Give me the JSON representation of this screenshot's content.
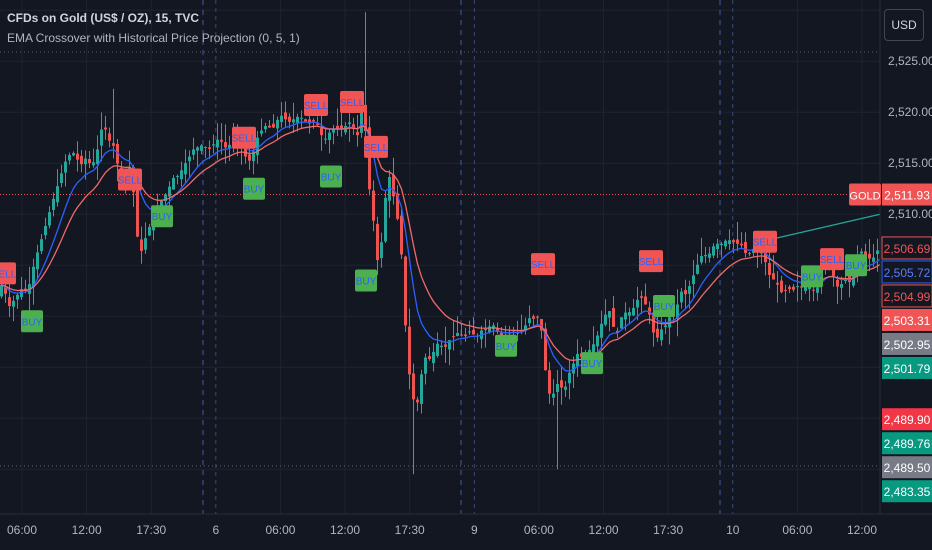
{
  "header": {
    "symbol_title": "CFDs on Gold (US$ / OZ), 15, TVC",
    "indicator_title": "EMA Crossover with Historical Price Projection (0, 5, 1)"
  },
  "currency_button": "USD",
  "chart_data": {
    "type": "candlestick",
    "title": "CFDs on Gold (US$ / OZ), 15, TVC",
    "indicator": "EMA Crossover with Historical Price Projection (0, 5, 1)",
    "y_axis": {
      "ticks": [
        "2,510.00",
        "2,515.00",
        "2,520.00",
        "2,525.00"
      ],
      "range": [
        2481,
        2531
      ]
    },
    "x_axis": {
      "ticks": [
        "06:00",
        "12:00",
        "17:30",
        "6",
        "06:00",
        "12:00",
        "17:30",
        "9",
        "06:00",
        "12:00",
        "17:30",
        "10",
        "06:00",
        "12:00"
      ]
    },
    "grid": true,
    "colors": {
      "background": "#131722",
      "up": "#26a69a",
      "down": "#ef5350",
      "ema_fast": "#2962ff",
      "ema_slow": "#f06a6a",
      "projection": "#26a69a",
      "buy_label": "#4caf50",
      "sell_label": "#f05454"
    },
    "price_path": [
      [
        0,
        2502.5
      ],
      [
        4,
        2503.6
      ],
      [
        8,
        2500.8
      ],
      [
        12,
        2501.2
      ],
      [
        16,
        2501.8
      ],
      [
        20,
        2502.4
      ],
      [
        24,
        2502.9
      ],
      [
        28,
        2502.2
      ],
      [
        32,
        2504.1
      ],
      [
        36,
        2505.6
      ],
      [
        40,
        2506.9
      ],
      [
        44,
        2508.2
      ],
      [
        48,
        2509.5
      ],
      [
        52,
        2510.9
      ],
      [
        56,
        2512.1
      ],
      [
        60,
        2513.4
      ],
      [
        64,
        2514.6
      ],
      [
        68,
        2515.7
      ],
      [
        72,
        2515.9
      ],
      [
        76,
        2516.1
      ],
      [
        80,
        2514.6
      ],
      [
        84,
        2515.2
      ],
      [
        88,
        2515.7
      ],
      [
        92,
        2514.3
      ],
      [
        96,
        2515.9
      ],
      [
        100,
        2516.8
      ],
      [
        104,
        2519.8
      ],
      [
        108,
        2516.8
      ],
      [
        112,
        2517.6
      ],
      [
        116,
        2515.8
      ],
      [
        120,
        2514.1
      ],
      [
        124,
        2513.6
      ],
      [
        128,
        2514.9
      ],
      [
        132,
        2514.4
      ],
      [
        136,
        2509.9
      ],
      [
        140,
        2505.7
      ],
      [
        144,
        2507.1
      ],
      [
        148,
        2508.2
      ],
      [
        152,
        2509.3
      ],
      [
        156,
        2510.2
      ],
      [
        160,
        2510.8
      ],
      [
        164,
        2511.8
      ],
      [
        168,
        2512.1
      ],
      [
        172,
        2513.3
      ],
      [
        176,
        2513.8
      ],
      [
        180,
        2513.7
      ],
      [
        184,
        2514.9
      ],
      [
        188,
        2515.1
      ],
      [
        192,
        2516.2
      ],
      [
        196,
        2516.5
      ],
      [
        200,
        2516.6
      ],
      [
        204,
        2516.9
      ],
      [
        208,
        2516.3
      ],
      [
        212,
        2516.5
      ],
      [
        216,
        2517.2
      ],
      [
        220,
        2517.4
      ],
      [
        224,
        2516.8
      ],
      [
        228,
        2516.3
      ],
      [
        232,
        2517.3
      ],
      [
        236,
        2517.3
      ],
      [
        240,
        2517.1
      ],
      [
        244,
        2516.1
      ],
      [
        248,
        2515.2
      ],
      [
        252,
        2515.3
      ],
      [
        256,
        2517.0
      ],
      [
        260,
        2518.0
      ],
      [
        264,
        2518.4
      ],
      [
        268,
        2518.9
      ],
      [
        272,
        2518.1
      ],
      [
        276,
        2518.9
      ],
      [
        280,
        2519.6
      ],
      [
        284,
        2519.7
      ],
      [
        288,
        2518.9
      ],
      [
        292,
        2519.2
      ],
      [
        296,
        2519.4
      ],
      [
        300,
        2519.7
      ],
      [
        304,
        2519.2
      ],
      [
        308,
        2519.0
      ],
      [
        312,
        2518.8
      ],
      [
        316,
        2519.4
      ],
      [
        320,
        2518.1
      ],
      [
        324,
        2517.4
      ],
      [
        328,
        2517.4
      ],
      [
        332,
        2518.6
      ],
      [
        336,
        2518.1
      ],
      [
        340,
        2518.6
      ],
      [
        344,
        2518.1
      ],
      [
        348,
        2519.2
      ],
      [
        352,
        2518.8
      ],
      [
        356,
        2517.9
      ],
      [
        360,
        2517.6
      ],
      [
        364,
        2523.7
      ],
      [
        368,
        2512.6
      ],
      [
        372,
        2512.3
      ],
      [
        376,
        2506.4
      ],
      [
        380,
        2504.6
      ],
      [
        384,
        2509.9
      ],
      [
        388,
        2513.3
      ],
      [
        392,
        2514.0
      ],
      [
        396,
        2509.5
      ],
      [
        400,
        2509.6
      ],
      [
        404,
        2502.5
      ],
      [
        408,
        2495.7
      ],
      [
        412,
        2492.9
      ],
      [
        416,
        2490.8
      ],
      [
        420,
        2492.3
      ],
      [
        424,
        2496.3
      ],
      [
        428,
        2495.6
      ],
      [
        432,
        2496.0
      ],
      [
        436,
        2497.0
      ],
      [
        440,
        2497.6
      ],
      [
        444,
        2496.6
      ],
      [
        448,
        2497.4
      ],
      [
        452,
        2497.9
      ],
      [
        456,
        2498.1
      ],
      [
        460,
        2498.6
      ],
      [
        464,
        2497.6
      ],
      [
        468,
        2498.5
      ],
      [
        472,
        2498.5
      ],
      [
        476,
        2497.9
      ],
      [
        480,
        2498.3
      ],
      [
        484,
        2498.9
      ],
      [
        488,
        2498.6
      ],
      [
        492,
        2499.4
      ],
      [
        496,
        2498.8
      ],
      [
        500,
        2498.1
      ],
      [
        504,
        2498.0
      ],
      [
        508,
        2498.3
      ],
      [
        512,
        2498.5
      ],
      [
        516,
        2498.5
      ],
      [
        520,
        2498.4
      ],
      [
        524,
        2498.8
      ],
      [
        528,
        2499.4
      ],
      [
        532,
        2500.2
      ],
      [
        536,
        2499.3
      ],
      [
        540,
        2500.5
      ],
      [
        544,
        2496.7
      ],
      [
        548,
        2492.7
      ],
      [
        552,
        2492.1
      ],
      [
        556,
        2492.7
      ],
      [
        560,
        2494.0
      ],
      [
        564,
        2492.0
      ],
      [
        568,
        2494.2
      ],
      [
        572,
        2494.7
      ],
      [
        576,
        2496.0
      ],
      [
        580,
        2496.6
      ],
      [
        584,
        2495.4
      ],
      [
        588,
        2496.4
      ],
      [
        592,
        2497.0
      ],
      [
        596,
        2497.5
      ],
      [
        600,
        2498.7
      ],
      [
        604,
        2499.8
      ],
      [
        608,
        2500.5
      ],
      [
        612,
        2500.5
      ],
      [
        616,
        2497.4
      ],
      [
        620,
        2499.4
      ],
      [
        624,
        2500.4
      ],
      [
        628,
        2500.3
      ],
      [
        632,
        2500.5
      ],
      [
        636,
        2501.1
      ],
      [
        640,
        2502.1
      ],
      [
        644,
        2501.5
      ],
      [
        648,
        2500.8
      ],
      [
        652,
        2499.5
      ],
      [
        656,
        2497.3
      ],
      [
        660,
        2498.5
      ],
      [
        664,
        2498.9
      ],
      [
        668,
        2499.3
      ],
      [
        672,
        2500.5
      ],
      [
        676,
        2499.4
      ],
      [
        680,
        2502.9
      ],
      [
        684,
        2501.9
      ],
      [
        688,
        2502.4
      ],
      [
        692,
        2503.5
      ],
      [
        696,
        2504.5
      ],
      [
        700,
        2505.6
      ],
      [
        704,
        2506.2
      ],
      [
        708,
        2505.8
      ],
      [
        712,
        2506.5
      ],
      [
        716,
        2507.2
      ],
      [
        720,
        2507.0
      ],
      [
        724,
        2507.2
      ],
      [
        728,
        2507.6
      ],
      [
        732,
        2507.3
      ],
      [
        736,
        2507.2
      ],
      [
        740,
        2507.0
      ],
      [
        744,
        2506.9
      ],
      [
        748,
        2505.5
      ],
      [
        752,
        2506.7
      ],
      [
        756,
        2506.5
      ],
      [
        760,
        2506.1
      ],
      [
        764,
        2506.4
      ],
      [
        768,
        2504.2
      ],
      [
        772,
        2503.9
      ],
      [
        776,
        2503.3
      ],
      [
        780,
        2502.9
      ],
      [
        784,
        2501.8
      ],
      [
        788,
        2503.3
      ],
      [
        792,
        2502.0
      ],
      [
        796,
        2503.2
      ],
      [
        800,
        2502.7
      ],
      [
        804,
        2502.9
      ],
      [
        808,
        2503.0
      ],
      [
        812,
        2503.0
      ],
      [
        816,
        2502.2
      ],
      [
        820,
        2503.4
      ],
      [
        824,
        2505.4
      ],
      [
        828,
        2505.0
      ],
      [
        832,
        2504.6
      ],
      [
        836,
        2503.3
      ],
      [
        840,
        2502.5
      ],
      [
        844,
        2503.8
      ],
      [
        848,
        2503.7
      ],
      [
        852,
        2503.0
      ],
      [
        856,
        2505.1
      ],
      [
        860,
        2506.5
      ],
      [
        864,
        2506.2
      ],
      [
        868,
        2505.6
      ],
      [
        872,
        2505.7
      ],
      [
        876,
        2505.8
      ],
      [
        880,
        2507.1
      ]
    ],
    "wick_highs": [
      [
        112,
        2522.3
      ],
      [
        364,
        2529.8
      ]
    ],
    "wick_lows": [
      [
        412,
        2484.5
      ],
      [
        556,
        2485.0
      ]
    ],
    "signals": [
      {
        "label": "SELL",
        "x": 4,
        "y": 2504.2
      },
      {
        "label": "BUY",
        "x": 32,
        "y": 2499.5
      },
      {
        "label": "SELL",
        "x": 130,
        "y": 2513.4
      },
      {
        "label": "BUY",
        "x": 162,
        "y": 2509.8
      },
      {
        "label": "SELL",
        "x": 244,
        "y": 2517.5
      },
      {
        "label": "BUY",
        "x": 254,
        "y": 2512.5
      },
      {
        "label": "SELL",
        "x": 316,
        "y": 2520.7
      },
      {
        "label": "BUY",
        "x": 331,
        "y": 2513.7
      },
      {
        "label": "SELL",
        "x": 352,
        "y": 2521.0
      },
      {
        "label": "BUY",
        "x": 366,
        "y": 2503.5
      },
      {
        "label": "SELL",
        "x": 376,
        "y": 2516.6
      },
      {
        "label": "BUY",
        "x": 506,
        "y": 2497.1
      },
      {
        "label": "SELL",
        "x": 543,
        "y": 2505.1
      },
      {
        "label": "BUY",
        "x": 592,
        "y": 2495.4
      },
      {
        "label": "SELL",
        "x": 651,
        "y": 2505.4
      },
      {
        "label": "BUY",
        "x": 664,
        "y": 2501.0
      },
      {
        "label": "SELL",
        "x": 765,
        "y": 2507.3
      },
      {
        "label": "BUY",
        "x": 812,
        "y": 2503.9
      },
      {
        "label": "SELL",
        "x": 832,
        "y": 2505.6
      },
      {
        "label": "BUY",
        "x": 856,
        "y": 2505.0
      }
    ],
    "projection_line": [
      [
        765,
        2507.4
      ],
      [
        880,
        2510.0
      ]
    ],
    "current_price_level": 2511.93,
    "price_badges": [
      {
        "text": "GOLD",
        "value": 2511.93,
        "bg": "#f05454",
        "fg": "#ffffff",
        "prefix": true
      },
      {
        "text": "2,511.93",
        "value": 2511.93,
        "bg": "#f05454",
        "fg": "#ffffff"
      },
      {
        "text": "2,506.69",
        "value": 2506.69,
        "bg": "#131722",
        "fg": "#f05454",
        "border": "#f05454"
      },
      {
        "text": "2,505.72",
        "value": 2505.72,
        "bg": "#131722",
        "fg": "#5b7bff",
        "border": "#2962ff"
      },
      {
        "text": "2,504.99",
        "value": 2504.99,
        "bg": "#131722",
        "fg": "#f05454",
        "border": "#f05454"
      },
      {
        "text": "2,503.31",
        "value": 2503.31,
        "bg": "#f05454",
        "fg": "#ffffff"
      },
      {
        "text": "2,502.95",
        "value": 2502.95,
        "bg": "#787b86",
        "fg": "#ffffff"
      },
      {
        "text": "2,501.79",
        "value": 2501.79,
        "bg": "#089981",
        "fg": "#ffffff"
      },
      {
        "text": "2,489.90",
        "value": 2489.9,
        "bg": "#f23645",
        "fg": "#ffffff"
      },
      {
        "text": "2,489.76",
        "value": 2489.76,
        "bg": "#089981",
        "fg": "#ffffff"
      },
      {
        "text": "2,489.50",
        "value": 2489.5,
        "bg": "#787b86",
        "fg": "#ffffff"
      },
      {
        "text": "2,483.35",
        "value": 2483.35,
        "bg": "#089981",
        "fg": "#ffffff"
      }
    ]
  }
}
